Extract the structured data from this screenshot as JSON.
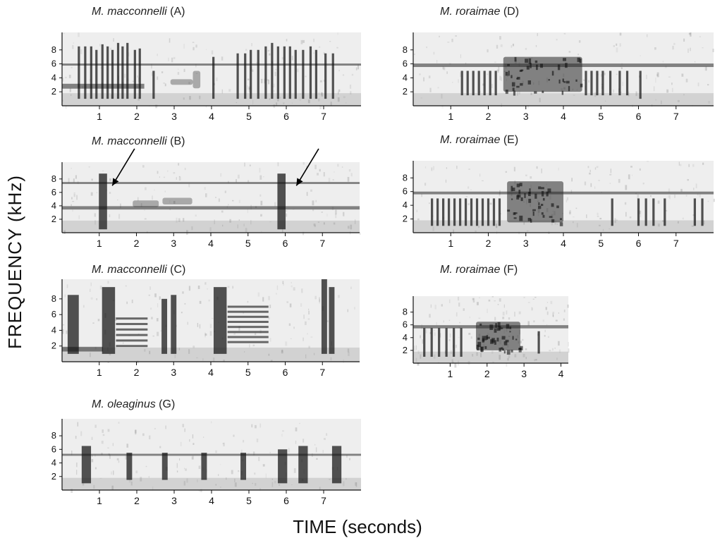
{
  "axis_labels": {
    "y": "FREQUENCY  (kHz)",
    "x": "TIME (seconds)"
  },
  "chart_data": [
    {
      "type": "heatmap",
      "id": "A",
      "species": "M. macconnelli",
      "panel_label": "(A)",
      "y_ticks": [
        "2",
        "4",
        "6",
        "8"
      ],
      "x_ticks": [
        "1",
        "2",
        "3",
        "4",
        "5",
        "6",
        "7"
      ],
      "notes": [
        {
          "t": 0.45,
          "lo": 1.0,
          "hi": 8.5
        },
        {
          "t": 0.62,
          "lo": 1.0,
          "hi": 8.5
        },
        {
          "t": 0.78,
          "lo": 1.0,
          "hi": 8.5
        },
        {
          "t": 0.92,
          "lo": 1.0,
          "hi": 8.0
        },
        {
          "t": 1.08,
          "lo": 1.0,
          "hi": 8.8
        },
        {
          "t": 1.22,
          "lo": 1.0,
          "hi": 8.5
        },
        {
          "t": 1.35,
          "lo": 1.0,
          "hi": 8.0
        },
        {
          "t": 1.5,
          "lo": 1.0,
          "hi": 9.0
        },
        {
          "t": 1.62,
          "lo": 1.0,
          "hi": 8.5
        },
        {
          "t": 1.75,
          "lo": 1.0,
          "hi": 9.0
        },
        {
          "t": 1.95,
          "lo": 1.0,
          "hi": 8.0
        },
        {
          "t": 2.08,
          "lo": 1.0,
          "hi": 8.2
        },
        {
          "t": 2.45,
          "lo": 1.0,
          "hi": 5.0
        },
        {
          "t": 4.05,
          "lo": 1.0,
          "hi": 7.0
        },
        {
          "t": 4.7,
          "lo": 1.0,
          "hi": 7.5
        },
        {
          "t": 4.9,
          "lo": 1.0,
          "hi": 7.5
        },
        {
          "t": 5.05,
          "lo": 1.0,
          "hi": 8.0
        },
        {
          "t": 5.25,
          "lo": 1.0,
          "hi": 8.0
        },
        {
          "t": 5.45,
          "lo": 1.0,
          "hi": 8.5
        },
        {
          "t": 5.62,
          "lo": 1.0,
          "hi": 9.0
        },
        {
          "t": 5.78,
          "lo": 1.0,
          "hi": 8.5
        },
        {
          "t": 5.95,
          "lo": 1.0,
          "hi": 8.5
        },
        {
          "t": 6.1,
          "lo": 1.0,
          "hi": 8.5
        },
        {
          "t": 6.25,
          "lo": 1.0,
          "hi": 8.0
        },
        {
          "t": 6.45,
          "lo": 1.0,
          "hi": 8.0
        },
        {
          "t": 6.65,
          "lo": 1.0,
          "hi": 8.5
        },
        {
          "t": 6.8,
          "lo": 1.0,
          "hi": 8.0
        },
        {
          "t": 7.05,
          "lo": 1.0,
          "hi": 7.5
        },
        {
          "t": 7.25,
          "lo": 1.0,
          "hi": 7.5
        }
      ],
      "bands": [
        {
          "t0": 0.0,
          "t1": 2.2,
          "f": 2.8,
          "w": 0.35
        },
        {
          "t0": 0.0,
          "t1": 8.0,
          "f": 5.9,
          "w": 0.15
        }
      ],
      "blobs": [
        {
          "t0": 2.9,
          "t1": 3.5,
          "f0": 3.0,
          "f1": 3.8
        },
        {
          "t0": 3.5,
          "t1": 3.7,
          "f0": 2.5,
          "f1": 5.0
        }
      ]
    },
    {
      "type": "heatmap",
      "id": "B",
      "species": "M. macconnelli",
      "panel_label": "(B)",
      "y_ticks": [
        "2",
        "4",
        "6",
        "8"
      ],
      "x_ticks": [
        "1",
        "2",
        "3",
        "4",
        "5",
        "6",
        "7"
      ],
      "notes": [
        {
          "t": 1.1,
          "lo": 0.5,
          "hi": 8.8,
          "w": 0.22
        },
        {
          "t": 5.9,
          "lo": 0.5,
          "hi": 8.8,
          "w": 0.22
        }
      ],
      "bands": [
        {
          "t0": 0.0,
          "t1": 8.0,
          "f": 3.7,
          "w": 0.25
        },
        {
          "t0": 0.0,
          "t1": 8.0,
          "f": 7.4,
          "w": 0.15
        }
      ],
      "blobs": [
        {
          "t0": 1.9,
          "t1": 2.6,
          "f0": 3.8,
          "f1": 4.8
        },
        {
          "t0": 2.7,
          "t1": 3.5,
          "f0": 4.2,
          "f1": 5.2
        }
      ],
      "arrows": [
        {
          "from_t": 1.95,
          "from_f": 12.5,
          "to_t": 1.35,
          "to_f": 7.0
        },
        {
          "from_t": 6.9,
          "from_f": 12.5,
          "to_t": 6.3,
          "to_f": 7.0
        }
      ]
    },
    {
      "type": "heatmap",
      "id": "C",
      "species": "M. macconnelli",
      "panel_label": "(C)",
      "y_ticks": [
        "2",
        "4",
        "6",
        "8"
      ],
      "x_ticks": [
        "1",
        "2",
        "3",
        "4",
        "5",
        "6",
        "7"
      ],
      "notes": [
        {
          "t": 0.3,
          "lo": 1.0,
          "hi": 8.5,
          "w": 0.3
        },
        {
          "t": 1.25,
          "lo": 1.0,
          "hi": 9.5,
          "w": 0.35
        },
        {
          "t": 2.75,
          "lo": 1.0,
          "hi": 8.0,
          "w": 0.15
        },
        {
          "t": 3.0,
          "lo": 1.0,
          "hi": 8.5,
          "w": 0.15
        },
        {
          "t": 4.25,
          "lo": 1.0,
          "hi": 9.5,
          "w": 0.35
        },
        {
          "t": 7.05,
          "lo": 1.0,
          "hi": 10.5,
          "w": 0.15
        },
        {
          "t": 7.25,
          "lo": 1.0,
          "hi": 9.5,
          "w": 0.15
        }
      ],
      "stacks": [
        {
          "t0": 1.45,
          "t1": 2.3,
          "f0": 2.0,
          "f1": 5.5,
          "n": 6
        },
        {
          "t0": 4.45,
          "t1": 5.55,
          "f0": 2.5,
          "f1": 7.0,
          "n": 8
        }
      ],
      "bands": [
        {
          "t0": 0.0,
          "t1": 1.1,
          "f": 1.6,
          "w": 0.3
        }
      ],
      "blobs": []
    },
    {
      "type": "heatmap",
      "id": "D",
      "species": "M. roraimae",
      "panel_label": "(D)",
      "y_ticks": [
        "2",
        "4",
        "6",
        "8"
      ],
      "x_ticks": [
        "1",
        "2",
        "3",
        "4",
        "5",
        "6",
        "7"
      ],
      "notes": [
        {
          "t": 1.3,
          "lo": 1.5,
          "hi": 5.0
        },
        {
          "t": 1.45,
          "lo": 1.5,
          "hi": 5.0
        },
        {
          "t": 1.6,
          "lo": 1.5,
          "hi": 5.0
        },
        {
          "t": 1.75,
          "lo": 1.5,
          "hi": 5.0
        },
        {
          "t": 1.9,
          "lo": 1.5,
          "hi": 5.0
        },
        {
          "t": 2.05,
          "lo": 1.5,
          "hi": 5.0
        },
        {
          "t": 2.2,
          "lo": 1.5,
          "hi": 5.0
        },
        {
          "t": 4.6,
          "lo": 1.5,
          "hi": 5.0
        },
        {
          "t": 4.75,
          "lo": 1.5,
          "hi": 5.0
        },
        {
          "t": 4.9,
          "lo": 1.5,
          "hi": 5.0
        },
        {
          "t": 5.05,
          "lo": 1.5,
          "hi": 5.0
        },
        {
          "t": 5.25,
          "lo": 1.5,
          "hi": 5.0
        },
        {
          "t": 5.5,
          "lo": 1.5,
          "hi": 5.0
        },
        {
          "t": 5.7,
          "lo": 1.5,
          "hi": 5.0
        },
        {
          "t": 6.05,
          "lo": 1.0,
          "hi": 5.0
        }
      ],
      "bands": [
        {
          "t0": 0.0,
          "t1": 8.0,
          "f": 5.8,
          "w": 0.25
        }
      ],
      "blobs": [
        {
          "t0": 2.4,
          "t1": 4.5,
          "f0": 2.0,
          "f1": 7.0,
          "dense": true
        }
      ]
    },
    {
      "type": "heatmap",
      "id": "E",
      "species": "M. roraimae",
      "panel_label": "(E)",
      "y_ticks": [
        "2",
        "4",
        "6",
        "8"
      ],
      "x_ticks": [
        "1",
        "2",
        "3",
        "4",
        "5",
        "6",
        "7"
      ],
      "notes": [
        {
          "t": 0.5,
          "lo": 1.0,
          "hi": 5.0
        },
        {
          "t": 0.65,
          "lo": 1.0,
          "hi": 5.0
        },
        {
          "t": 0.8,
          "lo": 1.0,
          "hi": 5.0
        },
        {
          "t": 0.95,
          "lo": 1.0,
          "hi": 5.0
        },
        {
          "t": 1.1,
          "lo": 1.0,
          "hi": 5.0
        },
        {
          "t": 1.25,
          "lo": 1.0,
          "hi": 5.0
        },
        {
          "t": 1.4,
          "lo": 1.0,
          "hi": 5.0
        },
        {
          "t": 1.55,
          "lo": 1.0,
          "hi": 5.0
        },
        {
          "t": 1.7,
          "lo": 1.0,
          "hi": 5.0
        },
        {
          "t": 1.85,
          "lo": 1.0,
          "hi": 5.0
        },
        {
          "t": 2.0,
          "lo": 1.0,
          "hi": 5.0
        },
        {
          "t": 2.15,
          "lo": 1.0,
          "hi": 5.0
        },
        {
          "t": 2.3,
          "lo": 1.0,
          "hi": 5.0
        },
        {
          "t": 5.3,
          "lo": 1.0,
          "hi": 5.0
        },
        {
          "t": 6.0,
          "lo": 1.0,
          "hi": 5.0
        },
        {
          "t": 6.2,
          "lo": 1.0,
          "hi": 5.0
        },
        {
          "t": 6.4,
          "lo": 1.0,
          "hi": 5.0
        },
        {
          "t": 6.7,
          "lo": 1.0,
          "hi": 5.0
        },
        {
          "t": 7.5,
          "lo": 1.0,
          "hi": 5.0
        },
        {
          "t": 7.7,
          "lo": 1.0,
          "hi": 5.0
        }
      ],
      "bands": [
        {
          "t0": 0.0,
          "t1": 8.0,
          "f": 5.8,
          "w": 0.2
        }
      ],
      "blobs": [
        {
          "t0": 2.5,
          "t1": 4.0,
          "f0": 1.5,
          "f1": 7.5,
          "dense": true
        }
      ]
    },
    {
      "type": "heatmap",
      "id": "F",
      "species": "M. roraimae",
      "panel_label": "(F)",
      "y_ticks": [
        "2",
        "4",
        "6",
        "8"
      ],
      "x_ticks": [
        "1",
        "2",
        "3",
        "4"
      ],
      "notes": [
        {
          "t": 0.3,
          "lo": 1.0,
          "hi": 5.5
        },
        {
          "t": 0.5,
          "lo": 1.0,
          "hi": 5.5
        },
        {
          "t": 0.7,
          "lo": 1.0,
          "hi": 5.5
        },
        {
          "t": 0.9,
          "lo": 1.0,
          "hi": 5.5
        },
        {
          "t": 1.1,
          "lo": 1.0,
          "hi": 5.5
        },
        {
          "t": 1.3,
          "lo": 1.0,
          "hi": 5.5
        },
        {
          "t": 3.4,
          "lo": 1.5,
          "hi": 5.0
        }
      ],
      "bands": [
        {
          "t0": 0.0,
          "t1": 4.2,
          "f": 5.7,
          "w": 0.25
        }
      ],
      "blobs": [
        {
          "t0": 1.7,
          "t1": 2.9,
          "f0": 2.0,
          "f1": 6.5,
          "dense": true
        }
      ]
    },
    {
      "type": "heatmap",
      "id": "G",
      "species": "M. oleaginus",
      "panel_label": "(G)",
      "y_ticks": [
        "2",
        "4",
        "6",
        "8"
      ],
      "x_ticks": [
        "1",
        "2",
        "3",
        "4",
        "5",
        "6",
        "7"
      ],
      "notes": [
        {
          "t": 0.65,
          "lo": 1.0,
          "hi": 6.5,
          "w": 0.25
        },
        {
          "t": 1.8,
          "lo": 1.5,
          "hi": 5.5,
          "w": 0.15
        },
        {
          "t": 2.75,
          "lo": 1.5,
          "hi": 5.5,
          "w": 0.15
        },
        {
          "t": 3.8,
          "lo": 1.5,
          "hi": 5.5,
          "w": 0.15
        },
        {
          "t": 4.85,
          "lo": 1.5,
          "hi": 5.5,
          "w": 0.15
        },
        {
          "t": 5.9,
          "lo": 1.0,
          "hi": 6.0,
          "w": 0.25
        },
        {
          "t": 6.45,
          "lo": 1.0,
          "hi": 6.5,
          "w": 0.25
        },
        {
          "t": 7.35,
          "lo": 1.0,
          "hi": 6.5,
          "w": 0.25
        }
      ],
      "bands": [
        {
          "t0": 0.0,
          "t1": 8.0,
          "f": 5.2,
          "w": 0.15
        }
      ],
      "blobs": []
    }
  ]
}
